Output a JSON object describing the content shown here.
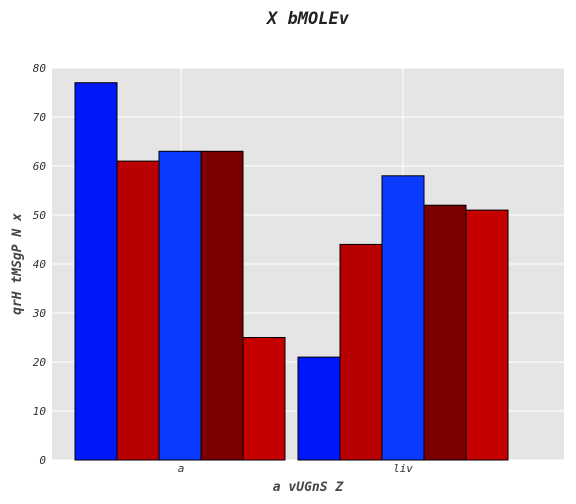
{
  "chart_data": {
    "type": "bar",
    "title": "X bMOLEv",
    "xlabel": "a vUGnS  Z",
    "ylabel": "qrH tMSgP N x",
    "categories": [
      "a",
      "liv"
    ],
    "ylim": [
      0,
      80
    ],
    "yticks": [
      0,
      10,
      20,
      30,
      40,
      50,
      60,
      70,
      80
    ],
    "grid": true,
    "legend": "none",
    "series": [
      {
        "values": [
          77,
          21
        ],
        "color": "#0017fa"
      },
      {
        "values": [
          61,
          44
        ],
        "color": "#b80000"
      },
      {
        "values": [
          63,
          58
        ],
        "color": "#0a39ff"
      },
      {
        "values": [
          63,
          52
        ],
        "color": "#7a0000"
      },
      {
        "values": [
          25,
          51
        ],
        "color": "#c40000"
      }
    ]
  }
}
